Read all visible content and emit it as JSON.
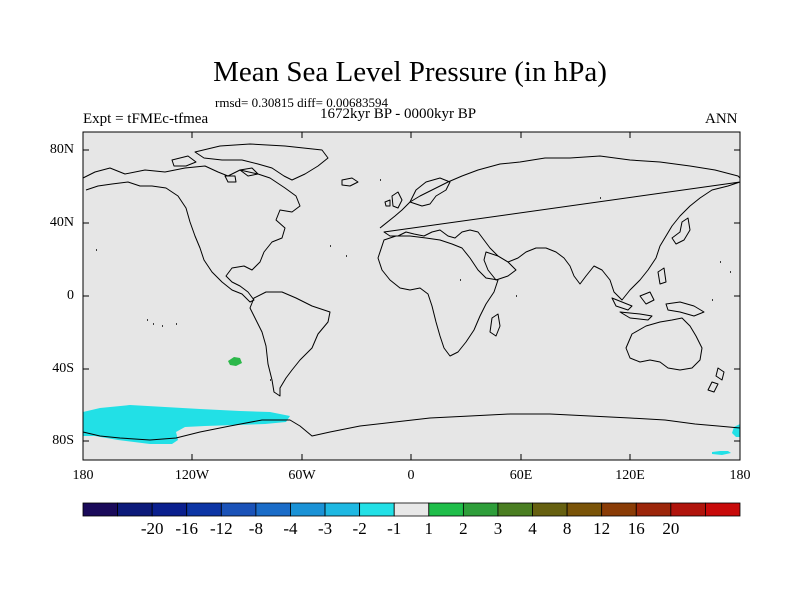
{
  "title": "Mean Sea Level Pressure (in hPa)",
  "stats_line": "rmsd= 0.30815 diff= 0.00683594",
  "period_line": "1672kyr BP - 0000kyr BP",
  "experiment_label": "Expt = tFMEc-tfmea",
  "season_label": "ANN",
  "map": {
    "lon_range": [
      -180,
      180
    ],
    "lat_range": [
      -90,
      90
    ],
    "background_color": "#e6e6e6",
    "coastline_color": "#000000",
    "y_axis_ticks": [
      "80N",
      "40N",
      "0",
      "40S",
      "80S"
    ],
    "x_axis_ticks": [
      "180",
      "120W",
      "60W",
      "0",
      "60E",
      "120E",
      "180"
    ],
    "anomalies": [
      {
        "name": "south-pacific-green-patch",
        "color": "#2cb84a",
        "lon": -101,
        "lat": -36
      },
      {
        "name": "amundsen-sea-cyan-band",
        "color": "#22e0e6",
        "lon_span": [
          -180,
          -66
        ],
        "lat_span": [
          -81,
          -63
        ]
      },
      {
        "name": "ross-sea-cyan-patch",
        "color": "#22e0e6",
        "lon_span": [
          170,
          180
        ],
        "lat_span": [
          -80,
          -73
        ]
      },
      {
        "name": "ross-sea-cyan-strip",
        "color": "#22e0e6",
        "lon_span": [
          158,
          172
        ],
        "lat_span": [
          -87,
          -85
        ]
      }
    ]
  },
  "colorbar": {
    "colors": [
      "#1a0a5a",
      "#0c1a7a",
      "#0a1f8e",
      "#0c35a5",
      "#1a52b8",
      "#1a6cc8",
      "#1a92d6",
      "#1eb8e2",
      "#22e0e6",
      "#e8e8e8",
      "#1fbe4a",
      "#2e9e3a",
      "#4a7e22",
      "#666010",
      "#7a5408",
      "#8a3c06",
      "#9c260a",
      "#b0140c",
      "#c80a0a"
    ],
    "labels": [
      "-20",
      "-16",
      "-12",
      "-8",
      "-4",
      "-3",
      "-2",
      "-1",
      "1",
      "2",
      "3",
      "4",
      "8",
      "12",
      "16",
      "20"
    ]
  }
}
